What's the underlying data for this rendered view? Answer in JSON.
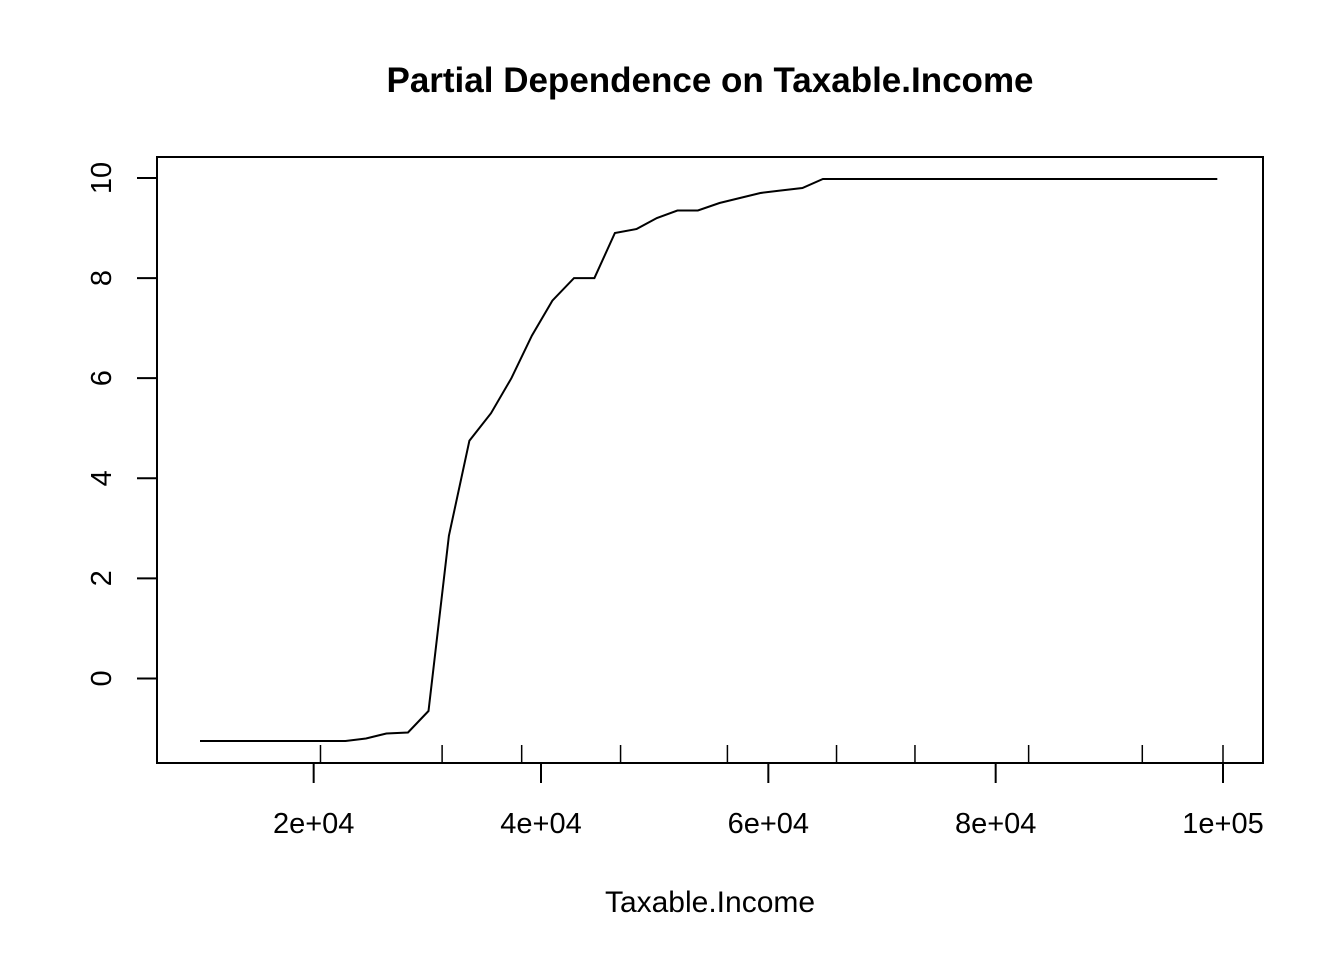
{
  "chart_data": {
    "type": "line",
    "title": "Partial Dependence on Taxable.Income",
    "xlabel": "Taxable.Income",
    "ylabel": "",
    "xlim": [
      10000,
      100000
    ],
    "ylim": [
      -1.25,
      10
    ],
    "x_ticks": [
      {
        "value": 20000,
        "label": "2e+04"
      },
      {
        "value": 40000,
        "label": "4e+04"
      },
      {
        "value": 60000,
        "label": "6e+04"
      },
      {
        "value": 80000,
        "label": "8e+04"
      },
      {
        "value": 100000,
        "label": "1e+05"
      }
    ],
    "y_ticks": [
      {
        "value": 0,
        "label": "0"
      },
      {
        "value": 2,
        "label": "2"
      },
      {
        "value": 4,
        "label": "4"
      },
      {
        "value": 6,
        "label": "6"
      },
      {
        "value": 8,
        "label": "8"
      },
      {
        "value": 10,
        "label": "10"
      }
    ],
    "rug": [
      20600,
      31300,
      38300,
      47000,
      56400,
      66000,
      72900,
      82900,
      92900,
      100000
    ],
    "grid": false,
    "legend": "none",
    "series": [
      {
        "color": "#000000",
        "x": [
          10000,
          11800,
          13700,
          15500,
          17300,
          19100,
          21000,
          22800,
          24600,
          26400,
          28300,
          30100,
          31900,
          33700,
          35600,
          37400,
          39200,
          41000,
          42900,
          44700,
          46500,
          48400,
          50200,
          52000,
          53800,
          55700,
          57500,
          59300,
          61100,
          63000,
          64800,
          66600,
          68400,
          70300,
          72100,
          73900,
          75700,
          77600,
          79400,
          81200,
          83100,
          84900,
          86700,
          88500,
          90400,
          92200,
          94000,
          95800,
          97700,
          99500
        ],
        "y": [
          -1.25,
          -1.25,
          -1.25,
          -1.25,
          -1.25,
          -1.25,
          -1.25,
          -1.25,
          -1.2,
          -1.1,
          -1.08,
          -0.65,
          2.85,
          4.75,
          5.3,
          6.0,
          6.85,
          7.55,
          8.0,
          8.0,
          8.9,
          8.98,
          9.2,
          9.35,
          9.35,
          9.5,
          9.6,
          9.7,
          9.75,
          9.8,
          9.98,
          9.98,
          9.98,
          9.98,
          9.98,
          9.98,
          9.98,
          9.98,
          9.98,
          9.98,
          9.98,
          9.98,
          9.98,
          9.98,
          9.98,
          9.98,
          9.98,
          9.98,
          9.98,
          9.98
        ]
      }
    ]
  }
}
